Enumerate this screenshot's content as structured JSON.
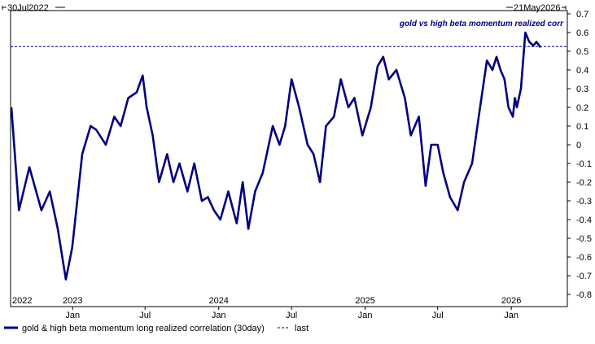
{
  "chart_data": {
    "type": "line",
    "title": "",
    "range_start_label": "30Jul2022",
    "range_end_label": "21May2026",
    "annotation": "gold vs high beta momentum realized corr",
    "xlabel": "",
    "ylabel": "",
    "ylim": [
      -0.8,
      0.7
    ],
    "y_ticks": [
      "0.7",
      "0.6",
      "0.5",
      "0.4",
      "0.3",
      "0.2",
      "0.1",
      "0",
      "-0.1",
      "-0.2",
      "-0.3",
      "-0.4",
      "-0.5",
      "-0.6",
      "-0.7",
      "-0.8"
    ],
    "year_labels": [
      {
        "label": "2022",
        "x": "2022-07-30"
      },
      {
        "label": "2023",
        "x": "2023-01-01"
      },
      {
        "label": "2024",
        "x": "2024-01-01"
      },
      {
        "label": "2025",
        "x": "2025-01-01"
      },
      {
        "label": "2026",
        "x": "2026-01-01"
      }
    ],
    "month_labels": [
      {
        "label": "Jan",
        "x": "2023-01-01"
      },
      {
        "label": "Jul",
        "x": "2023-07-01"
      },
      {
        "label": "Jan",
        "x": "2024-01-01"
      },
      {
        "label": "Jul",
        "x": "2024-07-01"
      },
      {
        "label": "Jan",
        "x": "2025-01-01"
      },
      {
        "label": "Jul",
        "x": "2025-07-01"
      },
      {
        "label": "Jan",
        "x": "2026-01-01"
      }
    ],
    "grid": false,
    "legend_position": "bottom",
    "series": [
      {
        "name": "gold & high beta momentum long realized correlation (30day)",
        "color": "#000080",
        "style": "solid",
        "x": [
          "2022-08-01",
          "2022-08-20",
          "2022-09-15",
          "2022-10-15",
          "2022-11-05",
          "2022-11-25",
          "2022-12-15",
          "2022-12-31",
          "2023-01-05",
          "2023-01-25",
          "2023-02-15",
          "2023-03-01",
          "2023-03-25",
          "2023-04-15",
          "2023-05-01",
          "2023-05-20",
          "2023-06-10",
          "2023-06-25",
          "2023-07-05",
          "2023-07-20",
          "2023-08-05",
          "2023-08-25",
          "2023-09-10",
          "2023-09-25",
          "2023-10-15",
          "2023-11-01",
          "2023-11-20",
          "2023-12-05",
          "2023-12-20",
          "2024-01-05",
          "2024-01-25",
          "2024-02-15",
          "2024-03-01",
          "2024-03-15",
          "2024-04-01",
          "2024-04-20",
          "2024-05-15",
          "2024-06-01",
          "2024-06-15",
          "2024-07-01",
          "2024-07-20",
          "2024-08-10",
          "2024-08-25",
          "2024-09-10",
          "2024-09-25",
          "2024-10-15",
          "2024-11-01",
          "2024-11-20",
          "2024-12-05",
          "2024-12-25",
          "2025-01-15",
          "2025-02-01",
          "2025-02-15",
          "2025-03-01",
          "2025-03-20",
          "2025-04-10",
          "2025-04-25",
          "2025-05-15",
          "2025-06-01",
          "2025-06-15",
          "2025-07-01",
          "2025-07-15",
          "2025-08-01",
          "2025-08-20",
          "2025-09-05",
          "2025-09-25",
          "2025-10-15",
          "2025-11-01",
          "2025-11-15",
          "2025-11-25",
          "2025-12-05",
          "2025-12-15",
          "2025-12-25",
          "2026-01-05",
          "2026-01-10",
          "2026-01-15",
          "2026-01-25",
          "2026-02-05",
          "2026-02-15",
          "2026-02-25",
          "2026-03-05",
          "2026-03-15"
        ],
        "values": [
          0.2,
          -0.35,
          -0.12,
          -0.35,
          -0.25,
          -0.45,
          -0.72,
          -0.55,
          -0.45,
          -0.05,
          0.1,
          0.08,
          0.0,
          0.15,
          0.1,
          0.25,
          0.28,
          0.37,
          0.2,
          0.05,
          -0.2,
          -0.05,
          -0.2,
          -0.1,
          -0.25,
          -0.1,
          -0.3,
          -0.28,
          -0.35,
          -0.4,
          -0.25,
          -0.42,
          -0.2,
          -0.45,
          -0.25,
          -0.15,
          0.1,
          0.0,
          0.1,
          0.35,
          0.2,
          0.0,
          -0.05,
          -0.2,
          0.1,
          0.15,
          0.35,
          0.2,
          0.25,
          0.05,
          0.2,
          0.42,
          0.47,
          0.35,
          0.4,
          0.25,
          0.05,
          0.15,
          -0.22,
          0.0,
          0.0,
          -0.15,
          -0.28,
          -0.35,
          -0.2,
          -0.1,
          0.2,
          0.45,
          0.4,
          0.47,
          0.4,
          0.35,
          0.2,
          0.15,
          0.25,
          0.2,
          0.3,
          0.6,
          0.55,
          0.53,
          0.55,
          0.52
        ]
      },
      {
        "name": "last",
        "color": "#000080",
        "style": "dashed",
        "values": [
          0.525
        ]
      }
    ]
  }
}
